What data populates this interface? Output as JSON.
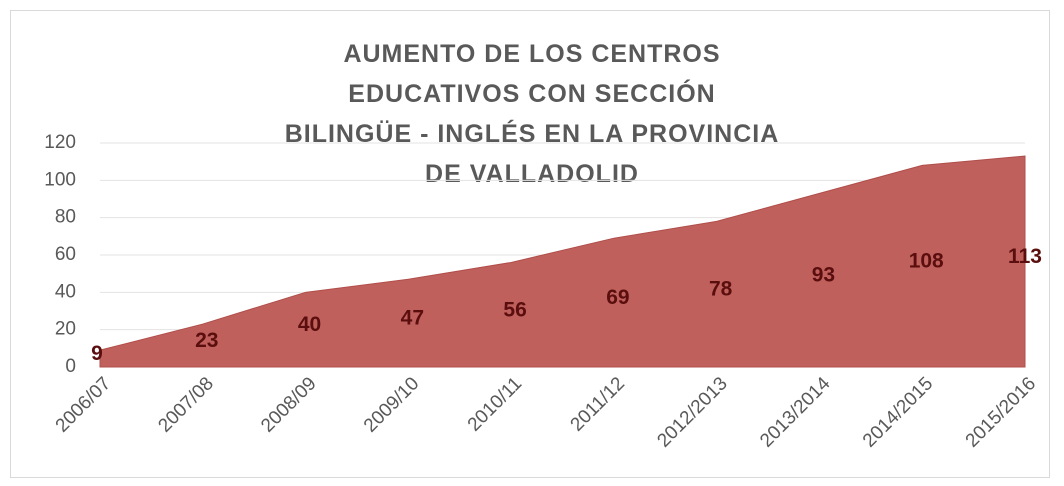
{
  "chart_data": {
    "type": "area",
    "title": "AUMENTO DE LOS CENTROS EDUCATIVOS CON SECCIÓN BILINGÜE - INGLÉS EN LA PROVINCIA DE VALLADOLID",
    "categories": [
      "2006/07",
      "2007/08",
      "2008/09",
      "2009/10",
      "2010/11",
      "2011/12",
      "2012/2013",
      "2013/2014",
      "2014/2015",
      "2015/2016"
    ],
    "values": [
      9,
      23,
      40,
      47,
      56,
      69,
      78,
      93,
      108,
      113
    ],
    "color": "#c0605c",
    "ylim": [
      0,
      120
    ],
    "yticks": [
      0,
      20,
      40,
      60,
      80,
      100,
      120
    ],
    "grid": true
  }
}
